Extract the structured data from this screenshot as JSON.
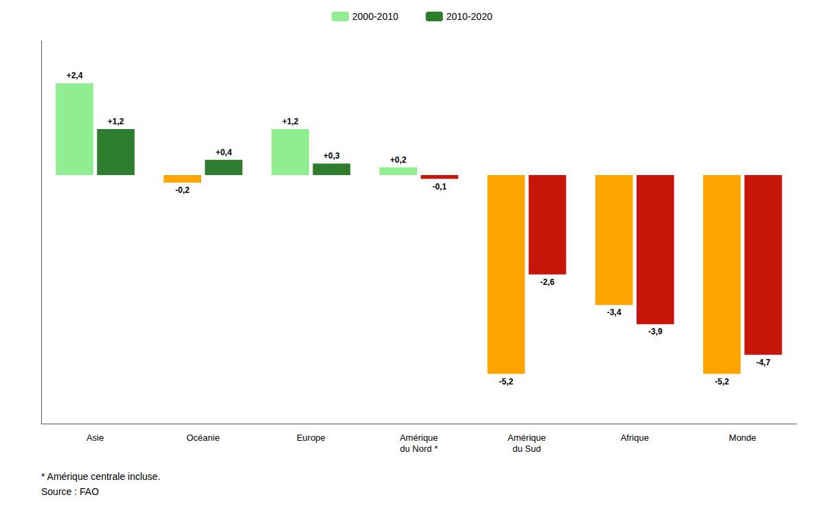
{
  "chart_data": {
    "type": "bar",
    "categories": [
      "Asie",
      "Océanie",
      "Europe",
      "Amérique\ndu Nord *",
      "Amérique\ndu Sud",
      "Afrique",
      "Monde"
    ],
    "series": [
      {
        "name": "2000-2010",
        "color": "#90EE90",
        "values": [
          2.4,
          -0.2,
          1.2,
          0.2,
          -5.2,
          -3.4,
          -5.2
        ],
        "value_labels": [
          "+2,4",
          "-0,2",
          "+1,2",
          "+0,2",
          "-5,2",
          "-3,4",
          "-5,2"
        ],
        "colors": [
          "#90EE90",
          "#FFA500",
          "#90EE90",
          "#90EE90",
          "#FFA500",
          "#FFA500",
          "#FFA500"
        ]
      },
      {
        "name": "2010-2020",
        "color": "#2E7D2E",
        "values": [
          1.2,
          0.4,
          0.3,
          -0.1,
          -2.6,
          -3.9,
          -4.7
        ],
        "value_labels": [
          "+1,2",
          "+0,4",
          "+0,3",
          "-0,1",
          "-2,6",
          "-3,9",
          "-4,7"
        ],
        "colors": [
          "#2E7D2E",
          "#2E7D2E",
          "#2E7D2E",
          "#C8150A",
          "#C8150A",
          "#C8150A",
          "#C8150A"
        ]
      }
    ],
    "ylim": [
      -6.5,
      3.5
    ],
    "data_labels": true,
    "tick_labels": "x",
    "grid": false,
    "legend": "top",
    "annotations": [
      "* Amérique centrale incluse.",
      "Source : FAO"
    ]
  }
}
